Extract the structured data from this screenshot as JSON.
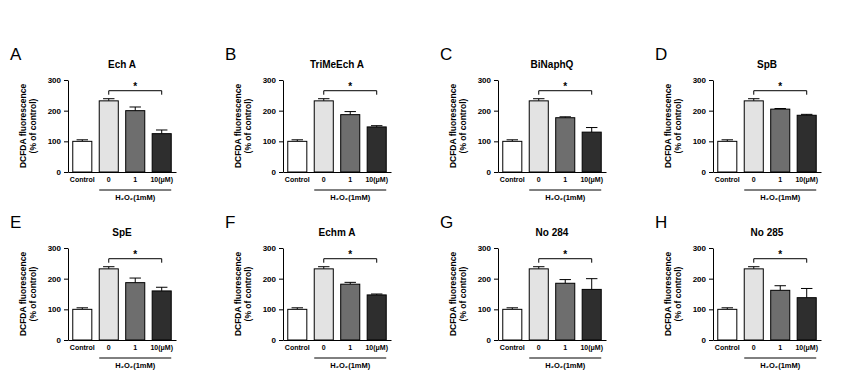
{
  "chart_data": [
    {
      "type": "bar",
      "panel": "A",
      "title": "Ech A",
      "y_label": [
        "DCFDA fluorescence",
        "(% of control)"
      ],
      "categories": [
        "Control",
        "0",
        "1",
        "10(μM)"
      ],
      "values": [
        100,
        232,
        200,
        125
      ],
      "errors": [
        5,
        7,
        12,
        12
      ],
      "colors": [
        "#ffffff",
        "#e3e3e3",
        "#6e6e6e",
        "#2e2e2e"
      ],
      "ylim": [
        0,
        300
      ],
      "yticks": [
        0,
        100,
        200,
        300
      ],
      "x_group": {
        "label": "H₂O₂(1mM)",
        "from": 1,
        "to": 3
      },
      "significance": {
        "label": "*",
        "between": [
          1,
          3
        ]
      }
    },
    {
      "type": "bar",
      "panel": "B",
      "title": "TriMeEch A",
      "y_label": [
        "DCFDA fluorescence",
        "(% of control)"
      ],
      "categories": [
        "Control",
        "0",
        "1",
        "10(μM)"
      ],
      "values": [
        100,
        232,
        187,
        147
      ],
      "errors": [
        5,
        7,
        10,
        4
      ],
      "colors": [
        "#ffffff",
        "#e3e3e3",
        "#6e6e6e",
        "#2e2e2e"
      ],
      "ylim": [
        0,
        300
      ],
      "yticks": [
        0,
        100,
        200,
        300
      ],
      "x_group": {
        "label": "H₂O₂(1mM)",
        "from": 1,
        "to": 3
      },
      "significance": {
        "label": "*",
        "between": [
          1,
          3
        ]
      }
    },
    {
      "type": "bar",
      "panel": "C",
      "title": "BiNaphQ",
      "y_label": [
        "DCFDA fluorescence",
        "(% of control)"
      ],
      "categories": [
        "Control",
        "0",
        "1",
        "10(μM)"
      ],
      "values": [
        100,
        232,
        177,
        130
      ],
      "errors": [
        5,
        7,
        3,
        15
      ],
      "colors": [
        "#ffffff",
        "#e3e3e3",
        "#6e6e6e",
        "#2e2e2e"
      ],
      "ylim": [
        0,
        300
      ],
      "yticks": [
        0,
        100,
        200,
        300
      ],
      "x_group": {
        "label": "H₂O₂(1mM)",
        "from": 1,
        "to": 3
      },
      "significance": {
        "label": "*",
        "between": [
          1,
          3
        ]
      }
    },
    {
      "type": "bar",
      "panel": "D",
      "title": "SpB",
      "y_label": [
        "DCFDA fluorescence",
        "(% of control)"
      ],
      "categories": [
        "Control",
        "0",
        "1",
        "10(μM)"
      ],
      "values": [
        100,
        232,
        205,
        185
      ],
      "errors": [
        5,
        7,
        2,
        3
      ],
      "colors": [
        "#ffffff",
        "#e3e3e3",
        "#6e6e6e",
        "#2e2e2e"
      ],
      "ylim": [
        0,
        300
      ],
      "yticks": [
        0,
        100,
        200,
        300
      ],
      "x_group": {
        "label": "H₂O₂(1mM)",
        "from": 1,
        "to": 3
      },
      "significance": {
        "label": "*",
        "between": [
          1,
          3
        ]
      }
    },
    {
      "type": "bar",
      "panel": "E",
      "title": "SpE",
      "y_label": [
        "DCFDA fluorescence",
        "(% of control)"
      ],
      "categories": [
        "Control",
        "0",
        "1",
        "10(μM)"
      ],
      "values": [
        100,
        232,
        187,
        160
      ],
      "errors": [
        5,
        7,
        15,
        12
      ],
      "colors": [
        "#ffffff",
        "#e3e3e3",
        "#6e6e6e",
        "#2e2e2e"
      ],
      "ylim": [
        0,
        300
      ],
      "yticks": [
        0,
        100,
        200,
        300
      ],
      "x_group": {
        "label": "H₂O₂(1mM)",
        "from": 1,
        "to": 3
      },
      "significance": {
        "label": "*",
        "between": [
          1,
          3
        ]
      }
    },
    {
      "type": "bar",
      "panel": "F",
      "title": "Echm A",
      "y_label": [
        "DCFDA fluorescence",
        "(% of control)"
      ],
      "categories": [
        "Control",
        "0",
        "1",
        "10(μM)"
      ],
      "values": [
        100,
        232,
        182,
        147
      ],
      "errors": [
        5,
        7,
        6,
        3
      ],
      "colors": [
        "#ffffff",
        "#e3e3e3",
        "#6e6e6e",
        "#2e2e2e"
      ],
      "ylim": [
        0,
        300
      ],
      "yticks": [
        0,
        100,
        200,
        300
      ],
      "x_group": {
        "label": "H₂O₂(1mM)",
        "from": 1,
        "to": 3
      },
      "significance": {
        "label": "*",
        "between": [
          1,
          3
        ]
      }
    },
    {
      "type": "bar",
      "panel": "G",
      "title": "No 284",
      "y_label": [
        "DCFDA fluorescence",
        "(% of control)"
      ],
      "categories": [
        "Control",
        "0",
        "1",
        "10(μM)"
      ],
      "values": [
        100,
        232,
        185,
        165
      ],
      "errors": [
        5,
        7,
        12,
        35
      ],
      "colors": [
        "#ffffff",
        "#e3e3e3",
        "#6e6e6e",
        "#2e2e2e"
      ],
      "ylim": [
        0,
        300
      ],
      "yticks": [
        0,
        100,
        200,
        300
      ],
      "x_group": {
        "label": "H₂O₂(1mM)",
        "from": 1,
        "to": 3
      },
      "significance": {
        "label": "*",
        "between": [
          1,
          3
        ]
      }
    },
    {
      "type": "bar",
      "panel": "H",
      "title": "No 285",
      "y_label": [
        "DCFDA fluorescence",
        "(% of control)"
      ],
      "categories": [
        "Control",
        "0",
        "1",
        "10(μM)"
      ],
      "values": [
        100,
        232,
        162,
        138
      ],
      "errors": [
        5,
        7,
        15,
        30
      ],
      "colors": [
        "#ffffff",
        "#e3e3e3",
        "#6e6e6e",
        "#2e2e2e"
      ],
      "ylim": [
        0,
        300
      ],
      "yticks": [
        0,
        100,
        200,
        300
      ],
      "x_group": {
        "label": "H₂O₂(1mM)",
        "from": 1,
        "to": 3
      },
      "significance": {
        "label": "*",
        "between": [
          1,
          3
        ]
      }
    }
  ]
}
